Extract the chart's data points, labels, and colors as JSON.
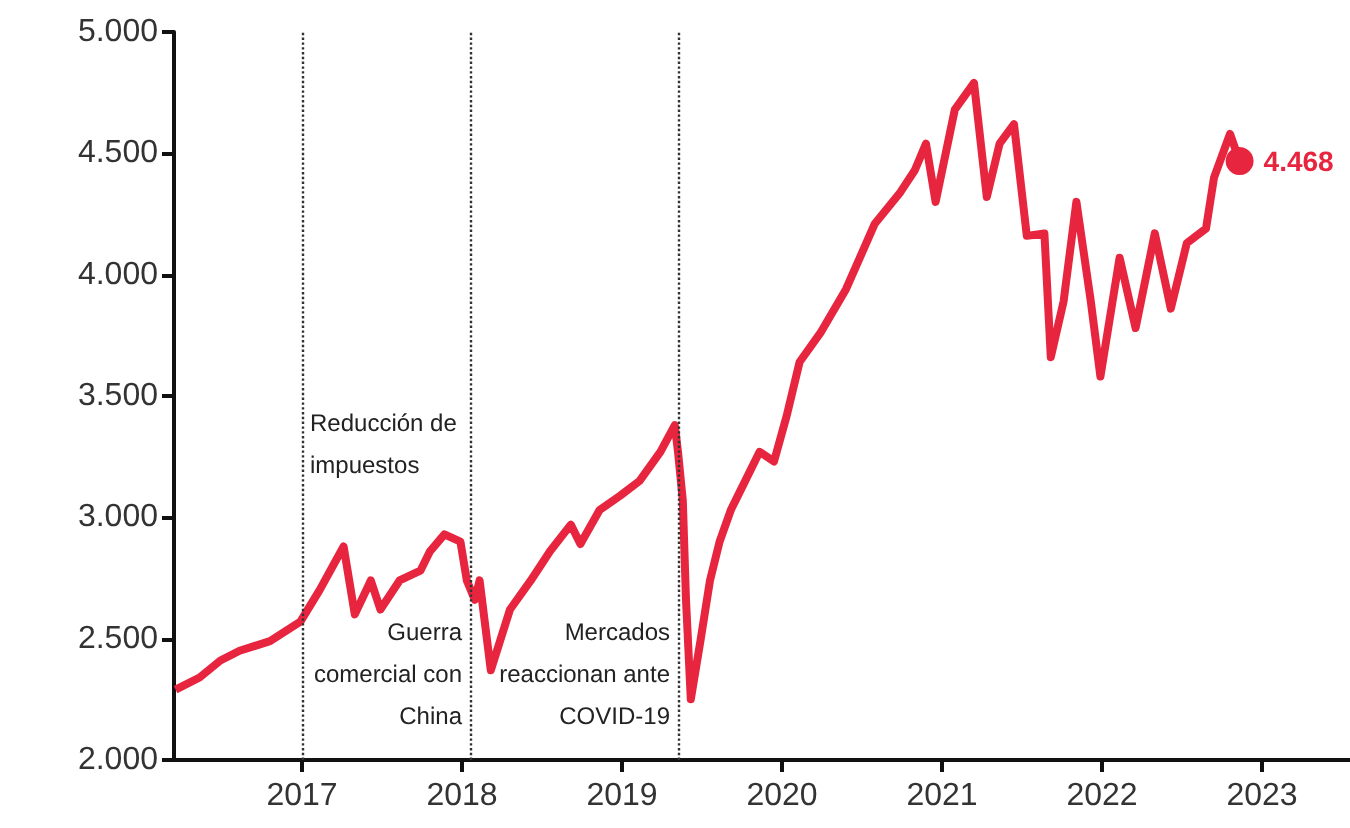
{
  "chart_data": {
    "type": "line",
    "x": [
      2016.21,
      2016.36,
      2016.49,
      2016.61,
      2016.8,
      2016.99,
      2017.11,
      2017.21,
      2017.26,
      2017.33,
      2017.43,
      2017.49,
      2017.61,
      2017.74,
      2017.8,
      2017.89,
      2017.99,
      2018.03,
      2018.08,
      2018.11,
      2018.18,
      2018.3,
      2018.43,
      2018.55,
      2018.68,
      2018.74,
      2018.86,
      2018.99,
      2019.11,
      2019.24,
      2019.33,
      2019.35,
      2019.38,
      2019.4,
      2019.43,
      2019.49,
      2019.55,
      2019.61,
      2019.68,
      2019.74,
      2019.86,
      2019.95,
      2020.03,
      2020.11,
      2020.24,
      2020.4,
      2020.58,
      2020.74,
      2020.83,
      2020.9,
      2020.96,
      2021.08,
      2021.2,
      2021.28,
      2021.36,
      2021.45,
      2021.53,
      2021.64,
      2021.68,
      2021.76,
      2021.84,
      2021.93,
      2021.99,
      2022.11,
      2022.21,
      2022.33,
      2022.43,
      2022.53,
      2022.65,
      2022.7,
      2022.8,
      2022.86
    ],
    "series": [
      {
        "color": "#e8253f",
        "values": [
          2290,
          2340,
          2410,
          2450,
          2490,
          2570,
          2700,
          2820,
          2880,
          2600,
          2740,
          2620,
          2740,
          2780,
          2860,
          2930,
          2900,
          2740,
          2660,
          2740,
          2370,
          2620,
          2740,
          2860,
          2970,
          2890,
          3030,
          3090,
          3150,
          3270,
          3380,
          3270,
          3070,
          2660,
          2250,
          2490,
          2740,
          2900,
          3030,
          3110,
          3270,
          3230,
          3420,
          3640,
          3760,
          3940,
          4210,
          4340,
          4430,
          4540,
          4300,
          4680,
          4790,
          4320,
          4540,
          4620,
          4160,
          4170,
          3660,
          3890,
          4300,
          3890,
          3580,
          4070,
          3780,
          4170,
          3860,
          4130,
          4190,
          4400,
          4580,
          4468
        ],
        "value_labels": [
          null,
          null,
          null,
          null,
          null,
          null,
          null,
          null,
          null,
          null,
          null,
          null,
          null,
          null,
          null,
          null,
          null,
          null,
          null,
          null,
          null,
          null,
          null,
          null,
          null,
          null,
          null,
          null,
          null,
          null,
          null,
          null,
          null,
          null,
          null,
          null,
          null,
          null,
          null,
          null,
          null,
          null,
          null,
          null,
          null,
          null,
          null,
          null,
          null,
          null,
          null,
          null,
          null,
          null,
          null,
          null,
          null,
          null,
          null,
          null,
          null,
          null,
          null,
          null,
          null,
          null,
          null,
          null,
          null,
          null,
          null,
          "4.468"
        ]
      }
    ],
    "xlim": [
      2016.2,
      2023.55
    ],
    "xticks": [
      2017,
      2018,
      2019,
      2020,
      2021,
      2022,
      2023
    ],
    "ylim": [
      2000,
      5000
    ],
    "yticks": [
      {
        "value": 2000,
        "label": "2.000"
      },
      {
        "value": 2500,
        "label": "2.500"
      },
      {
        "value": 3000,
        "label": "3.000"
      },
      {
        "value": 3500,
        "label": "3.500"
      },
      {
        "value": 4000,
        "label": "4.000"
      },
      {
        "value": 4500,
        "label": "4.500"
      },
      {
        "value": 5000,
        "label": "5.000"
      }
    ],
    "ref_lines": [
      {
        "axis": "x",
        "value": 2017,
        "label": "Reducción de\nimpuestos",
        "line_style": "dotted",
        "color": "#333333"
      },
      {
        "axis": "x",
        "value": 2018.05,
        "label": "Guerra\ncomercial con\nChina",
        "line_style": "dotted",
        "color": "#333333"
      },
      {
        "axis": "x",
        "value": 2019.35,
        "label": "Mercados\nreaccionan ante\nCOVID-19",
        "line_style": "dotted",
        "color": "#333333"
      }
    ],
    "grid": false
  }
}
